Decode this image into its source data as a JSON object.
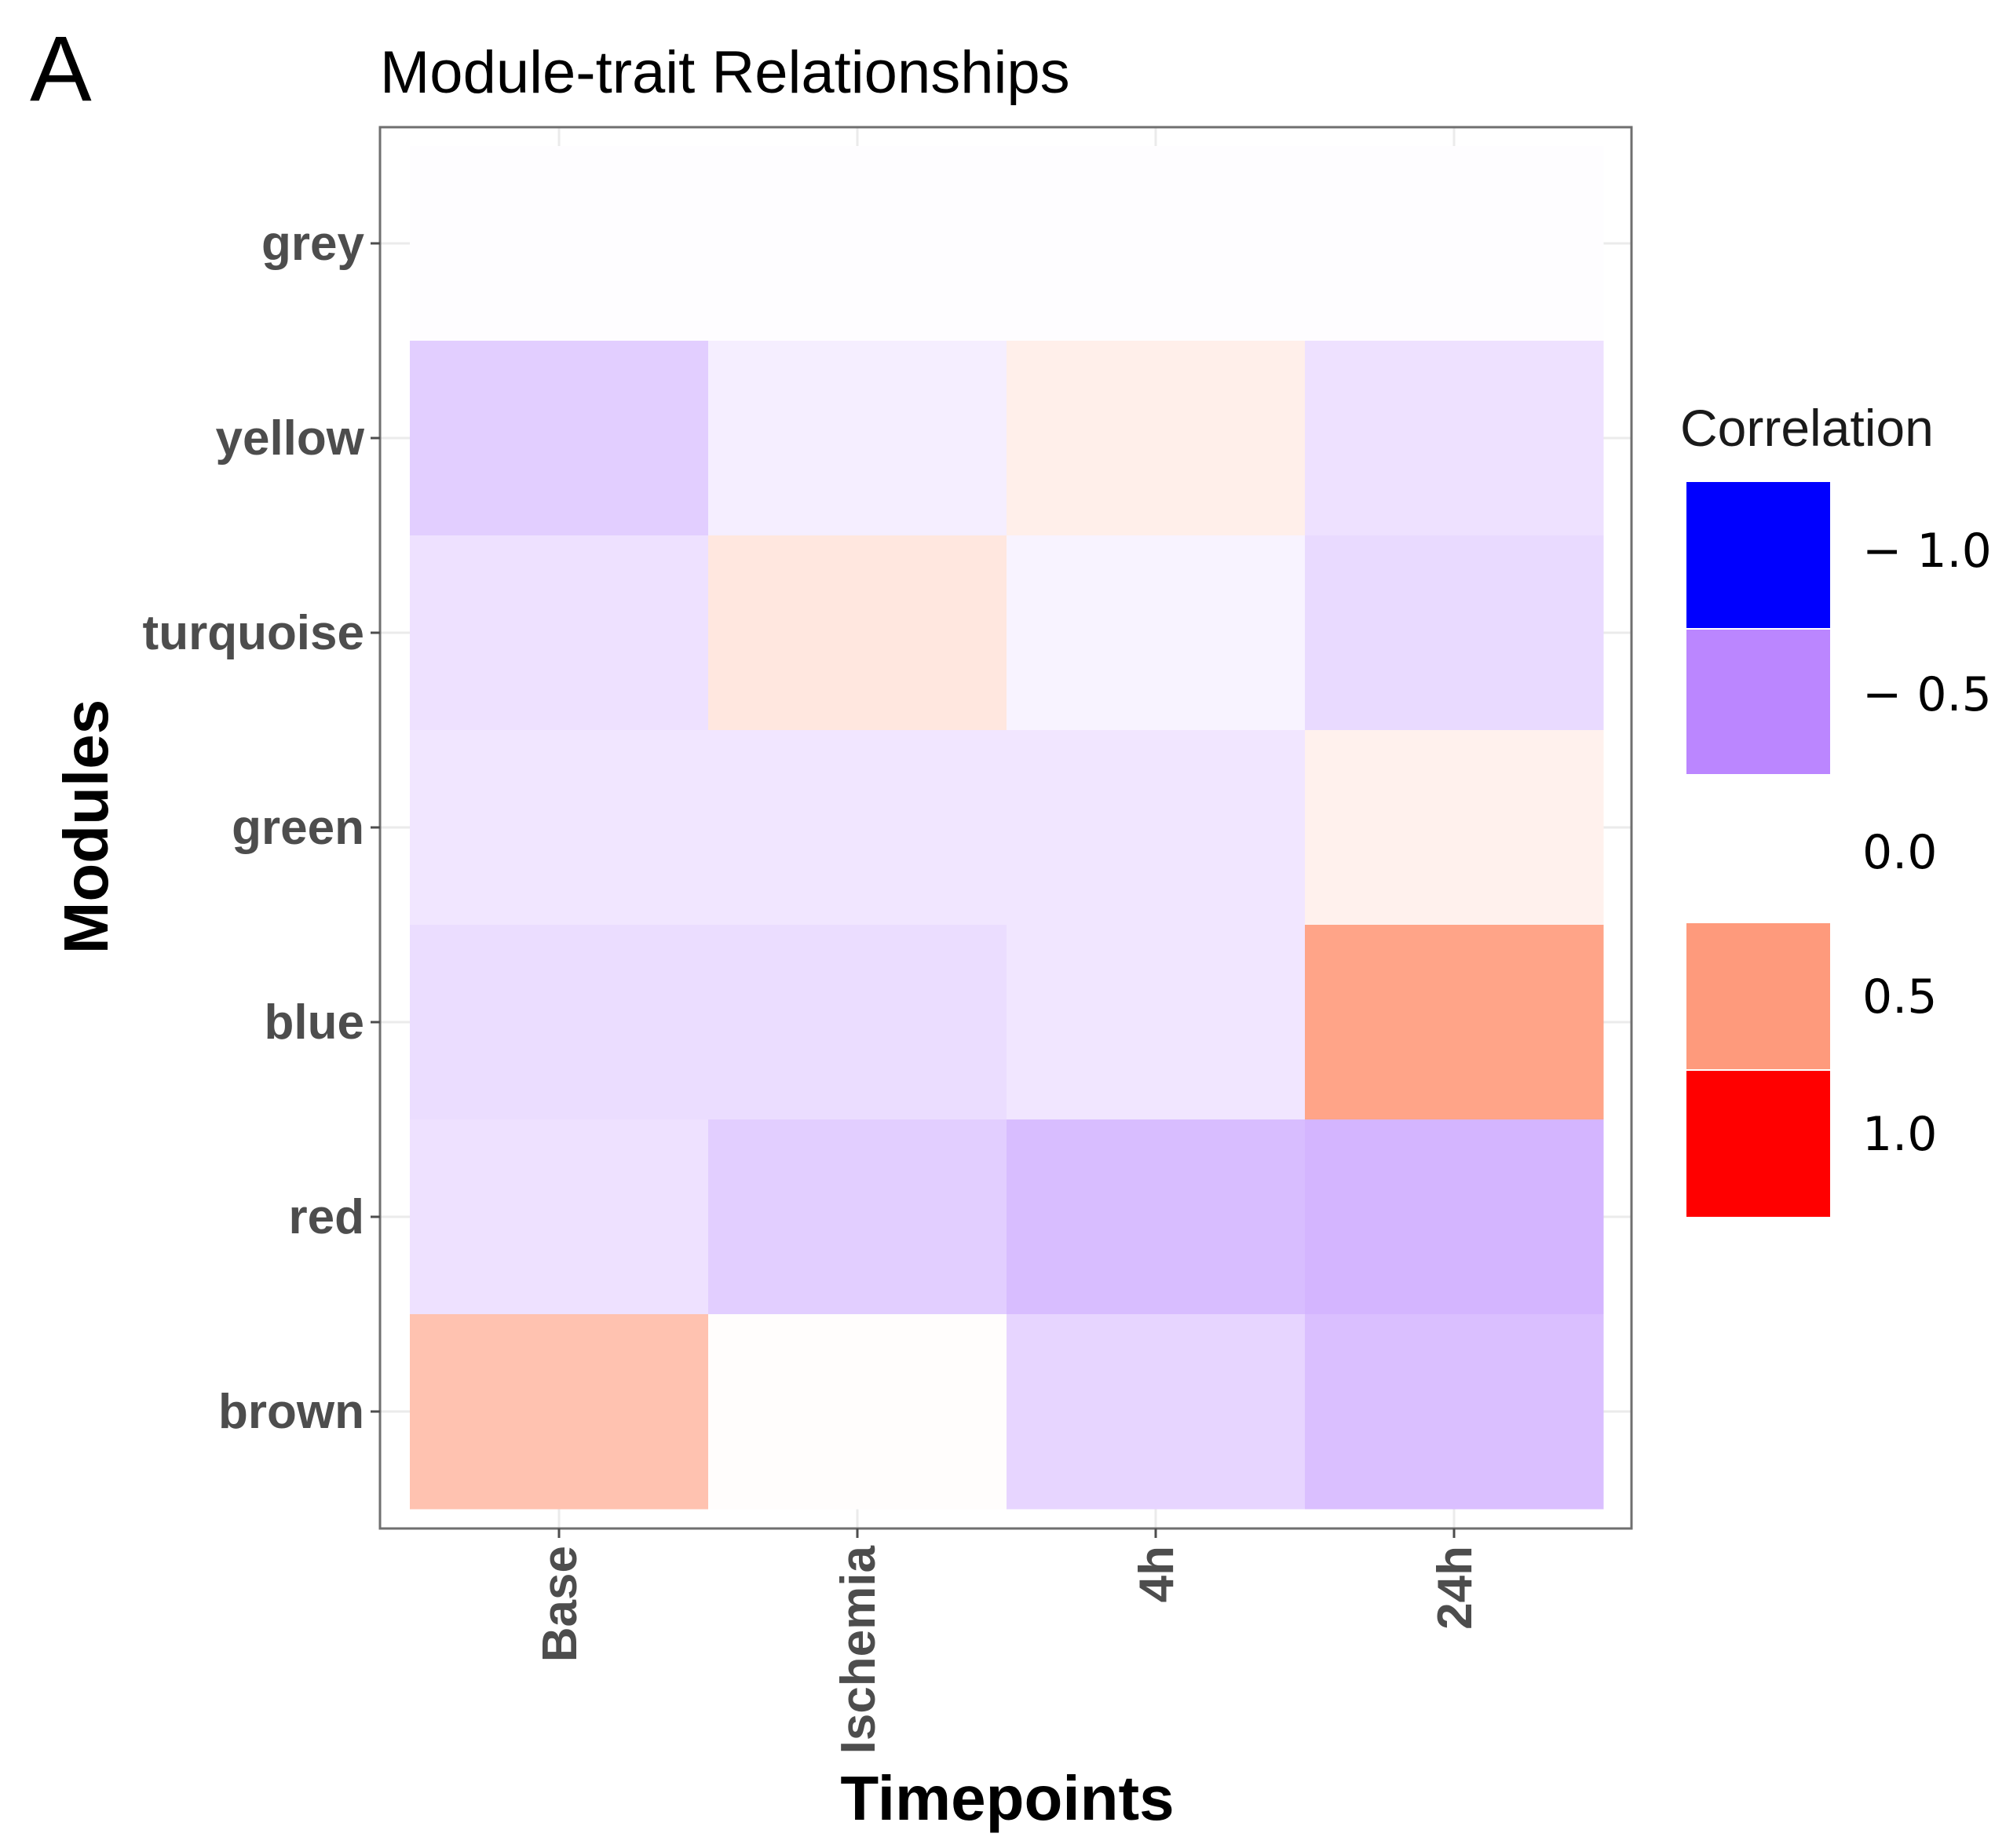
{
  "panel_letter": "A",
  "chart_data": {
    "type": "heatmap",
    "title": "Module-trait Relationships",
    "xlabel": "Timepoints",
    "ylabel": "Modules",
    "x_categories": [
      "Base",
      "Ischemia",
      "4h",
      "24h"
    ],
    "y_categories": [
      "grey",
      "yellow",
      "turquoise",
      "green",
      "blue",
      "red",
      "brown"
    ],
    "values": [
      [
        -0.01,
        -0.01,
        -0.01,
        -0.01
      ],
      [
        -0.2,
        -0.07,
        0.08,
        -0.12
      ],
      [
        -0.12,
        0.12,
        -0.05,
        -0.15
      ],
      [
        -0.1,
        -0.1,
        -0.1,
        0.07
      ],
      [
        -0.14,
        -0.14,
        -0.1,
        0.45
      ],
      [
        -0.12,
        -0.2,
        -0.27,
        -0.3
      ],
      [
        0.3,
        0.01,
        -0.17,
        -0.26
      ]
    ],
    "color_scale": {
      "title": "Correlation",
      "range": [
        -1,
        1
      ],
      "low_color": "#0000ff",
      "mid_color": "#ffffff",
      "high_color": "#ff0000",
      "purple_anchor": "#b784ff",
      "salmon_anchor": "#ff9a7b"
    },
    "legend": {
      "title": "Correlation",
      "position": "right",
      "labels": [
        "− 1.0",
        "− 0.5",
        "0.0",
        "0.5",
        "1.0"
      ],
      "colors": [
        "#0000ff",
        "#bb86ff",
        "#ffffff",
        "#fe9a7c",
        "#ff0000"
      ]
    },
    "grid": true
  }
}
